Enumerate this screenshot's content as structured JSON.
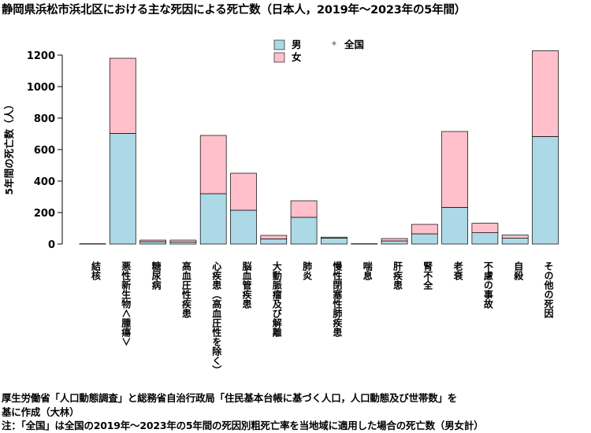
{
  "title": "静岡県浜松市浜北区における主な死因による死亡数（日本人，2019年～2023年の5年間）",
  "notes": [
    "厚生労働省「人口動態調査」と総務省自治行政局「住民基本台帳に基づく人口，人口動態及び世帯数」を",
    "基に作成（大林）",
    "注：「全国」は全国の2019年～2023年の5年間の死因別粗死亡率を当地域に適用した場合の死亡数（男女計）"
  ],
  "chart_data": {
    "type": "bar",
    "stacked": true,
    "ylabel": "5年間の死亡数（人）",
    "ylim": [
      0,
      1250
    ],
    "yticks": [
      0,
      200,
      400,
      600,
      800,
      1000,
      1200
    ],
    "categories": [
      "結核",
      "悪性新生物＜腫瘍＞",
      "糖尿病",
      "高血圧性疾患",
      "心疾患（高血圧性を除く）",
      "脳血管疾患",
      "大動脈瘤及び解離",
      "肺炎",
      "慢性閉塞性肺疾患",
      "喘息",
      "肝疾患",
      "腎不全",
      "老衰",
      "不慮の事故",
      "自殺",
      "その他の死因"
    ],
    "series": [
      {
        "name": "男",
        "color": "#add8e6",
        "values": [
          1,
          703,
          15,
          12,
          320,
          215,
          33,
          170,
          38,
          1,
          20,
          65,
          233,
          72,
          37,
          683
        ]
      },
      {
        "name": "女",
        "color": "#ffc0cb",
        "values": [
          1,
          477,
          10,
          13,
          370,
          235,
          22,
          105,
          6,
          1,
          15,
          60,
          482,
          60,
          20,
          545
        ]
      }
    ],
    "legend": {
      "position": "top",
      "national_label": "全国"
    }
  }
}
